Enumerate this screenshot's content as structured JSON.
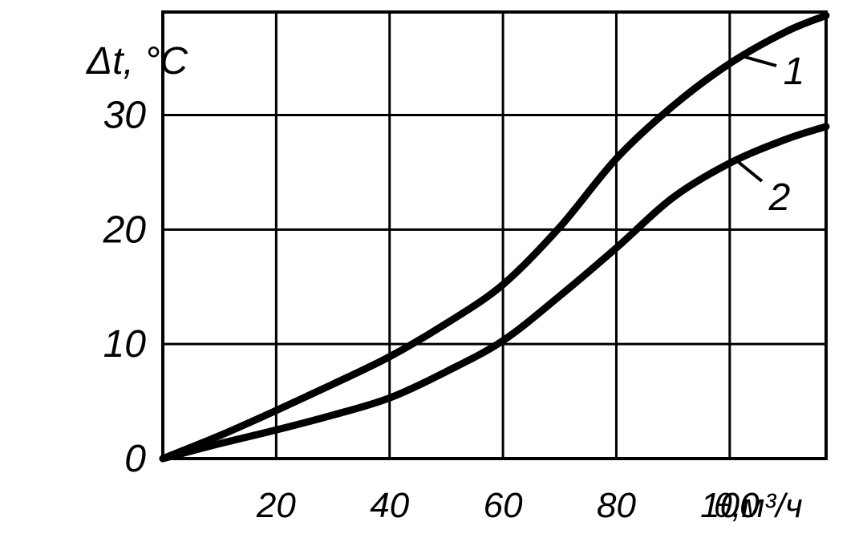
{
  "chart_data": {
    "type": "line",
    "xlabel": "θ,м³/ч",
    "ylabel": "Δt, °C",
    "xlim": [
      0,
      117
    ],
    "ylim": [
      0,
      39
    ],
    "x_ticks": [
      {
        "value": 20,
        "label": "20"
      },
      {
        "value": 40,
        "label": "40"
      },
      {
        "value": 60,
        "label": "60"
      },
      {
        "value": 80,
        "label": "80"
      },
      {
        "value": 100,
        "label": "100"
      }
    ],
    "y_ticks": [
      {
        "value": 0,
        "label": "0"
      },
      {
        "value": 10,
        "label": "10"
      },
      {
        "value": 20,
        "label": "20"
      },
      {
        "value": 30,
        "label": "30"
      }
    ],
    "grid": true,
    "series": [
      {
        "name": "1",
        "points": [
          [
            0,
            0
          ],
          [
            10,
            2
          ],
          [
            20,
            4.2
          ],
          [
            30,
            6.5
          ],
          [
            40,
            8.9
          ],
          [
            50,
            11.8
          ],
          [
            60,
            15.2
          ],
          [
            70,
            20.2
          ],
          [
            80,
            26.2
          ],
          [
            90,
            30.8
          ],
          [
            100,
            34.5
          ],
          [
            110,
            37.3
          ],
          [
            117,
            38.7
          ]
        ]
      },
      {
        "name": "2",
        "points": [
          [
            0,
            0
          ],
          [
            10,
            1.3
          ],
          [
            20,
            2.5
          ],
          [
            30,
            3.8
          ],
          [
            40,
            5.3
          ],
          [
            50,
            7.6
          ],
          [
            60,
            10.3
          ],
          [
            70,
            14.2
          ],
          [
            80,
            18.4
          ],
          [
            90,
            22.8
          ],
          [
            100,
            25.8
          ],
          [
            110,
            27.9
          ],
          [
            117,
            29
          ]
        ]
      }
    ]
  }
}
